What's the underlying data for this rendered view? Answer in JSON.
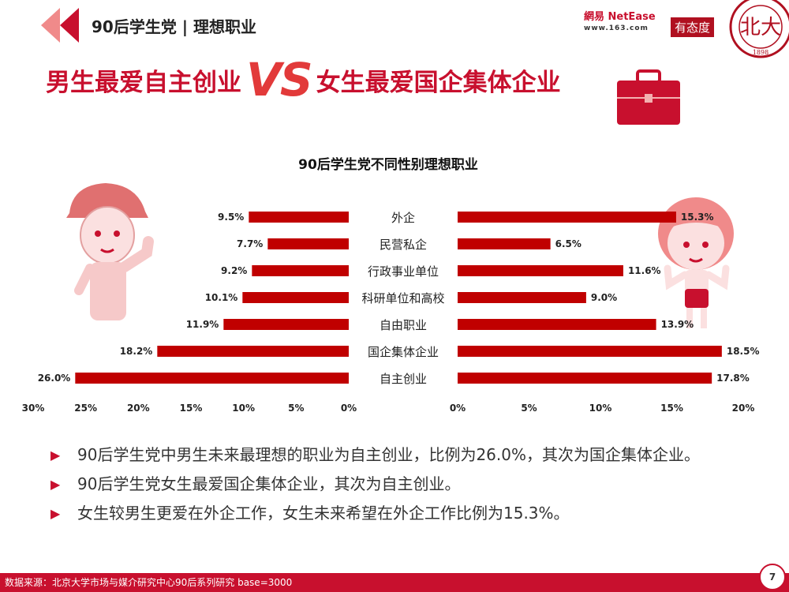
{
  "header": {
    "title": "90后学生党 | 理想职业"
  },
  "headline": {
    "left": "男生最爱自主创业",
    "vs": "VS",
    "right": "女生最爱国企集体企业"
  },
  "logos": {
    "netease": "網易 NetEase",
    "netease_sub": "www.163.com",
    "youtaidu": "有态度",
    "pku_year": "1898"
  },
  "colors": {
    "accent": "#c8102e",
    "bar": "#c00000"
  },
  "chart_data": {
    "type": "bar",
    "title": "90后学生党不同性别理想职业",
    "categories": [
      "外企",
      "民营私企",
      "行政事业单位",
      "科研单位和高校",
      "自由职业",
      "国企集体企业",
      "自主创业"
    ],
    "series": [
      {
        "values": [
          9.5,
          7.7,
          9.2,
          10.1,
          11.9,
          18.2,
          26.0
        ],
        "labels": [
          "9.5%",
          "7.7%",
          "9.2%",
          "10.1%",
          "11.9%",
          "18.2%",
          "26.0%"
        ],
        "xlim": [
          0,
          30
        ],
        "ticks": [
          "30%",
          "25%",
          "20%",
          "15%",
          "10%",
          "5%",
          "0%"
        ]
      },
      {
        "values": [
          15.3,
          6.5,
          11.6,
          9.0,
          13.9,
          18.5,
          17.8
        ],
        "labels": [
          "15.3%",
          "6.5%",
          "11.6%",
          "9.0%",
          "13.9%",
          "18.5%",
          "17.8%"
        ],
        "xlim": [
          0,
          20
        ],
        "ticks": [
          "0%",
          "5%",
          "10%",
          "15%",
          "20%"
        ]
      }
    ]
  },
  "bullets": [
    "90后学生党中男生未来最理想的职业为自主创业，比例为26.0%，其次为国企集体企业。",
    "90后学生党女生最爱国企集体企业，其次为自主创业。",
    "女生较男生更爱在外企工作，女生未来希望在外企工作比例为15.3%。"
  ],
  "footer": {
    "source": "数据来源：北京大学市场与媒介研究中心90后系列研究 base=3000",
    "page": "7"
  },
  "icons": {
    "bullet": "triangle-right-icon",
    "header": "double-chevron-left-icon",
    "briefcase": "briefcase-icon",
    "boy": "boy-illustration",
    "girl": "girl-illustration",
    "seal": "pku-seal-icon"
  }
}
